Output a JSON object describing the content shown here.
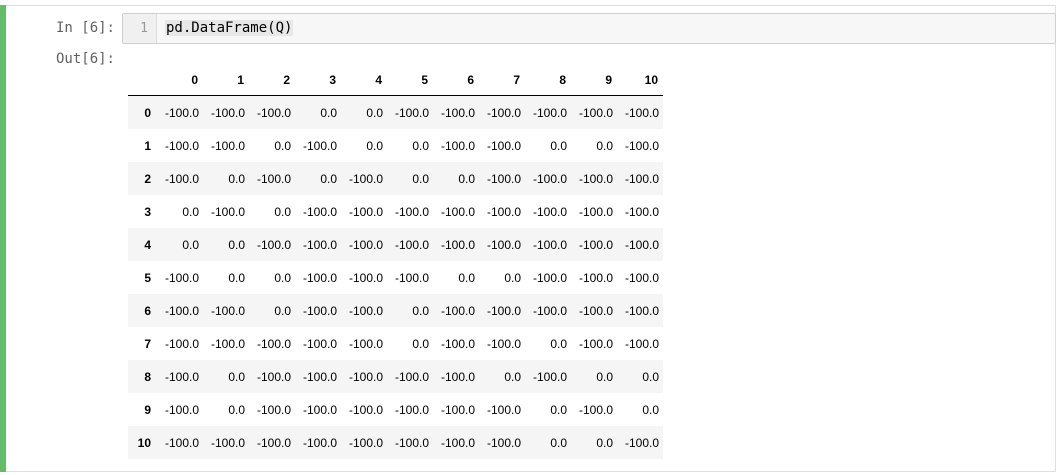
{
  "cell": {
    "in_prompt": "In [6]:",
    "out_prompt": "Out[6]:",
    "line_number": "1",
    "code": "pd.DataFrame(Q)"
  },
  "table": {
    "columns": [
      "0",
      "1",
      "2",
      "3",
      "4",
      "5",
      "6",
      "7",
      "8",
      "9",
      "10"
    ],
    "rows": [
      {
        "index": "0",
        "values": [
          "-100.0",
          "-100.0",
          "-100.0",
          "0.0",
          "0.0",
          "-100.0",
          "-100.0",
          "-100.0",
          "-100.0",
          "-100.0",
          "-100.0"
        ]
      },
      {
        "index": "1",
        "values": [
          "-100.0",
          "-100.0",
          "0.0",
          "-100.0",
          "0.0",
          "0.0",
          "-100.0",
          "-100.0",
          "0.0",
          "0.0",
          "-100.0"
        ]
      },
      {
        "index": "2",
        "values": [
          "-100.0",
          "0.0",
          "-100.0",
          "0.0",
          "-100.0",
          "0.0",
          "0.0",
          "-100.0",
          "-100.0",
          "-100.0",
          "-100.0"
        ]
      },
      {
        "index": "3",
        "values": [
          "0.0",
          "-100.0",
          "0.0",
          "-100.0",
          "-100.0",
          "-100.0",
          "-100.0",
          "-100.0",
          "-100.0",
          "-100.0",
          "-100.0"
        ]
      },
      {
        "index": "4",
        "values": [
          "0.0",
          "0.0",
          "-100.0",
          "-100.0",
          "-100.0",
          "-100.0",
          "-100.0",
          "-100.0",
          "-100.0",
          "-100.0",
          "-100.0"
        ]
      },
      {
        "index": "5",
        "values": [
          "-100.0",
          "0.0",
          "0.0",
          "-100.0",
          "-100.0",
          "-100.0",
          "0.0",
          "0.0",
          "-100.0",
          "-100.0",
          "-100.0"
        ]
      },
      {
        "index": "6",
        "values": [
          "-100.0",
          "-100.0",
          "0.0",
          "-100.0",
          "-100.0",
          "0.0",
          "-100.0",
          "-100.0",
          "-100.0",
          "-100.0",
          "-100.0"
        ]
      },
      {
        "index": "7",
        "values": [
          "-100.0",
          "-100.0",
          "-100.0",
          "-100.0",
          "-100.0",
          "0.0",
          "-100.0",
          "-100.0",
          "0.0",
          "-100.0",
          "-100.0"
        ]
      },
      {
        "index": "8",
        "values": [
          "-100.0",
          "0.0",
          "-100.0",
          "-100.0",
          "-100.0",
          "-100.0",
          "-100.0",
          "0.0",
          "-100.0",
          "0.0",
          "0.0"
        ]
      },
      {
        "index": "9",
        "values": [
          "-100.0",
          "0.0",
          "-100.0",
          "-100.0",
          "-100.0",
          "-100.0",
          "-100.0",
          "-100.0",
          "0.0",
          "-100.0",
          "0.0"
        ]
      },
      {
        "index": "10",
        "values": [
          "-100.0",
          "-100.0",
          "-100.0",
          "-100.0",
          "-100.0",
          "-100.0",
          "-100.0",
          "-100.0",
          "0.0",
          "0.0",
          "-100.0"
        ]
      }
    ]
  },
  "colors": {
    "cell_selected_bar": "#66bb6a",
    "prompt_text": "#616161",
    "input_background": "#f7f7f7",
    "table_stripe": "#f5f5f5"
  }
}
